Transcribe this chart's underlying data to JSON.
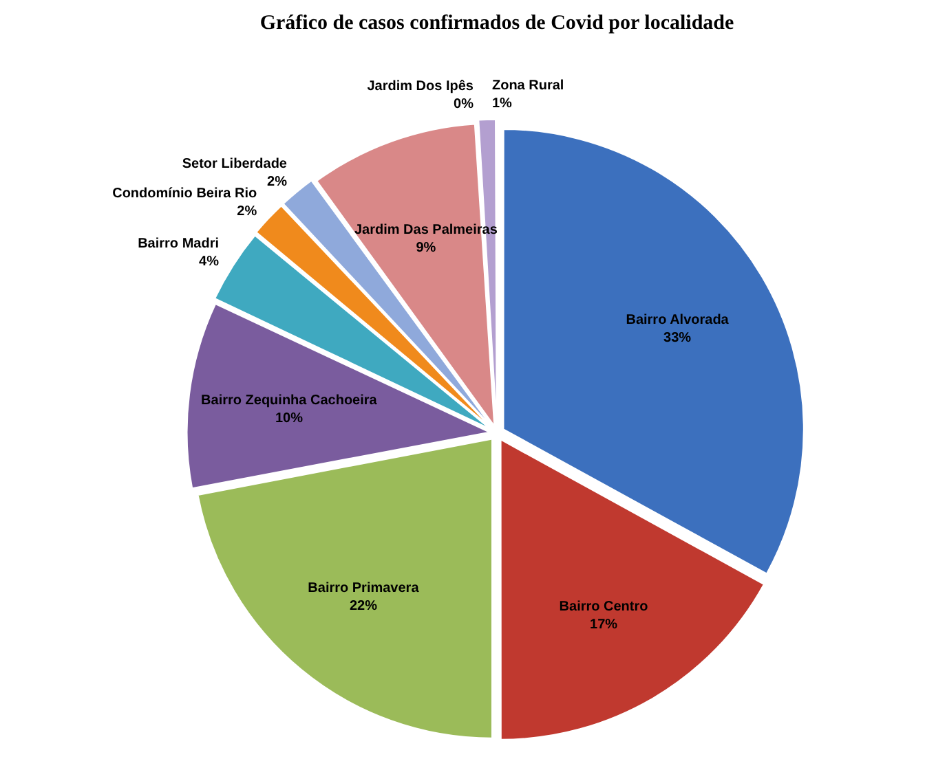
{
  "chart_data": {
    "type": "pie",
    "title": "Gráfico de casos confirmados de Covid por localidade",
    "categories": [
      "Bairro Alvorada",
      "Bairro Centro",
      "Bairro Primavera",
      "Bairro Zequinha Cachoeira",
      "Bairro Madri",
      "Condomínio Beira Rio",
      "Setor Liberdade",
      "Jardim Das Palmeiras",
      "Jardim Dos Ipês",
      "Zona Rural"
    ],
    "values": [
      33,
      17,
      22,
      10,
      4,
      2,
      2,
      9,
      0,
      1
    ],
    "colors": [
      "#3c70be",
      "#c0392f",
      "#9bbb59",
      "#7a5c9e",
      "#3fa9c0",
      "#f08a1c",
      "#8fa9db",
      "#d98888",
      "#a8c878",
      "#b39fd0"
    ],
    "value_labels": [
      "33%",
      "17%",
      "22%",
      "10%",
      "4%",
      "2%",
      "2%",
      "9%",
      "0%",
      "1%"
    ],
    "legend": false
  }
}
